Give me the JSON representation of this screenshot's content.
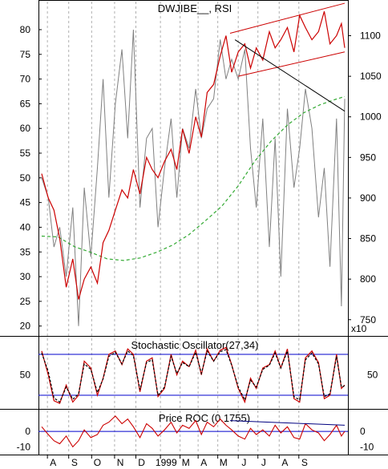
{
  "chart_data": [
    {
      "type": "line",
      "title": "DWJIBE__, RSI",
      "left_axis": {
        "ticks": [
          20,
          25,
          30,
          35,
          40,
          45,
          50,
          55,
          60,
          65,
          70,
          75,
          80
        ],
        "range": [
          18,
          86
        ]
      },
      "right_axis": {
        "ticks": [
          800,
          850,
          900,
          950,
          1000,
          1050,
          1100
        ],
        "minor": 750,
        "range": [
          730,
          1144
        ],
        "multiplier_label": "x10"
      },
      "series": [
        {
          "name": "",
          "role": "rsi",
          "color": "#808080",
          "axis": "left",
          "x": [
            0,
            8,
            15,
            22,
            30,
            38,
            45,
            52,
            60,
            68,
            75,
            82,
            90,
            98,
            105,
            112,
            120,
            128,
            135,
            142,
            150,
            158,
            165,
            172,
            180,
            188,
            195,
            202,
            210,
            218,
            225,
            232,
            240,
            248,
            255,
            262,
            270,
            278,
            285,
            292,
            300,
            308,
            315,
            322,
            330,
            338,
            345,
            352,
            360,
            366,
            370
          ],
          "values": [
            50,
            46,
            36,
            40,
            30,
            44,
            20,
            48,
            34,
            52,
            70,
            46,
            65,
            76,
            58,
            80,
            44,
            58,
            60,
            40,
            52,
            62,
            46,
            60,
            56,
            68,
            58,
            64,
            66,
            78,
            70,
            74,
            70,
            76,
            56,
            44,
            62,
            36,
            58,
            30,
            64,
            48,
            56,
            68,
            60,
            42,
            52,
            32,
            62,
            24,
            66
          ]
        },
        {
          "name": "",
          "role": "price",
          "color": "#cc0000",
          "axis": "right",
          "x": [
            0,
            8,
            15,
            22,
            30,
            38,
            45,
            52,
            60,
            68,
            75,
            82,
            90,
            98,
            105,
            112,
            120,
            128,
            135,
            142,
            150,
            158,
            165,
            172,
            180,
            188,
            195,
            202,
            210,
            218,
            225,
            232,
            240,
            248,
            255,
            262,
            270,
            278,
            285,
            292,
            300,
            308,
            315,
            322,
            330,
            338,
            345,
            352,
            360,
            366,
            370
          ],
          "values": [
            930,
            900,
            885,
            850,
            790,
            825,
            775,
            800,
            815,
            795,
            845,
            860,
            885,
            910,
            900,
            935,
            905,
            950,
            935,
            925,
            945,
            960,
            935,
            985,
            955,
            1000,
            975,
            1030,
            1040,
            1075,
            1100,
            1055,
            1080,
            1090,
            1060,
            1085,
            1070,
            1105,
            1085,
            1095,
            1110,
            1080,
            1125,
            1110,
            1095,
            1105,
            1130,
            1090,
            1100,
            1115,
            1085
          ]
        },
        {
          "name": "",
          "role": "moving-average",
          "color": "#33aa33",
          "axis": "right",
          "x": [
            0,
            20,
            40,
            60,
            80,
            100,
            120,
            140,
            160,
            180,
            200,
            220,
            240,
            260,
            280,
            300,
            320,
            340,
            360,
            370
          ],
          "values": [
            853,
            852,
            840,
            833,
            825,
            823,
            826,
            833,
            842,
            855,
            872,
            890,
            915,
            945,
            970,
            990,
            1005,
            1015,
            1022,
            1025
          ]
        }
      ],
      "trendlines": [
        {
          "name": "upper-channel",
          "axis": "right",
          "from": [
            230,
            1103
          ],
          "to": [
            370,
            1140
          ],
          "color": "#cc0000"
        },
        {
          "name": "lower-channel",
          "axis": "right",
          "from": [
            240,
            1050
          ],
          "to": [
            370,
            1080
          ],
          "color": "#cc0000"
        },
        {
          "name": "downtrend",
          "axis": "right",
          "from": [
            236,
            1095
          ],
          "to": [
            370,
            1007
          ],
          "color": "#000000"
        }
      ],
      "grid": "vertical-dashed"
    },
    {
      "type": "line",
      "title": "Stochastic Oscillator(27,34)",
      "left_axis": {
        "ticks": [
          50
        ],
        "range": [
          0,
          100
        ]
      },
      "right_axis": {
        "ticks": [
          50
        ],
        "range": [
          0,
          100
        ]
      },
      "reference_lines": [
        80,
        20
      ],
      "series": [
        {
          "name": "",
          "role": "%K",
          "color": "#cc0000",
          "style": "solid",
          "x": [
            0,
            8,
            15,
            22,
            30,
            38,
            45,
            52,
            60,
            68,
            75,
            82,
            90,
            98,
            105,
            112,
            120,
            128,
            135,
            142,
            150,
            158,
            165,
            172,
            180,
            188,
            195,
            202,
            210,
            218,
            225,
            232,
            240,
            248,
            255,
            262,
            270,
            278,
            285,
            292,
            300,
            308,
            315,
            322,
            330,
            338,
            345,
            352,
            360,
            366,
            370
          ],
          "values": [
            85,
            50,
            12,
            8,
            35,
            10,
            20,
            70,
            60,
            20,
            45,
            80,
            85,
            65,
            88,
            80,
            25,
            70,
            75,
            18,
            30,
            80,
            50,
            70,
            62,
            86,
            50,
            88,
            70,
            86,
            90,
            65,
            30,
            10,
            45,
            30,
            60,
            65,
            85,
            60,
            88,
            15,
            10,
            75,
            85,
            68,
            15,
            20,
            80,
            30,
            35
          ]
        },
        {
          "name": "",
          "role": "%D",
          "color": "#000000",
          "style": "dashed",
          "x": [
            0,
            8,
            15,
            22,
            30,
            38,
            45,
            52,
            60,
            68,
            75,
            82,
            90,
            98,
            105,
            112,
            120,
            128,
            135,
            142,
            150,
            158,
            165,
            172,
            180,
            188,
            195,
            202,
            210,
            218,
            225,
            232,
            240,
            248,
            255,
            262,
            270,
            278,
            285,
            292,
            300,
            308,
            315,
            322,
            330,
            338,
            345,
            352,
            360,
            366,
            370
          ],
          "values": [
            82,
            55,
            16,
            10,
            32,
            14,
            22,
            66,
            58,
            24,
            44,
            77,
            83,
            66,
            85,
            78,
            28,
            68,
            72,
            20,
            32,
            77,
            52,
            68,
            62,
            83,
            52,
            85,
            70,
            84,
            87,
            64,
            32,
            13,
            42,
            32,
            58,
            64,
            82,
            60,
            85,
            18,
            13,
            72,
            82,
            66,
            18,
            22,
            77,
            32,
            34
          ]
        }
      ]
    },
    {
      "type": "line",
      "title": "Price ROC (0.1755)",
      "left_axis": {
        "ticks": [
          0,
          -10
        ],
        "range": [
          -15,
          12
        ]
      },
      "right_axis": {
        "ticks": [
          0,
          -10
        ],
        "range": [
          -15,
          12
        ]
      },
      "reference_lines": [
        0
      ],
      "series": [
        {
          "name": "",
          "role": "roc",
          "color": "#cc0000",
          "x": [
            0,
            8,
            15,
            22,
            30,
            38,
            45,
            52,
            60,
            68,
            75,
            82,
            90,
            98,
            105,
            112,
            120,
            128,
            135,
            142,
            150,
            158,
            165,
            172,
            180,
            188,
            195,
            202,
            210,
            218,
            225,
            232,
            240,
            248,
            255,
            262,
            270,
            278,
            285,
            292,
            300,
            308,
            315,
            322,
            330,
            338,
            345,
            352,
            360,
            366,
            370
          ],
          "values": [
            3,
            -2,
            -6,
            -8,
            -3,
            -10,
            -6,
            1,
            -4,
            -2,
            4,
            6,
            10,
            5,
            8,
            3,
            -4,
            5,
            2,
            -3,
            1,
            6,
            -1,
            4,
            2,
            7,
            -2,
            6,
            3,
            8,
            4,
            1,
            -3,
            -5,
            2,
            -2,
            1,
            -3,
            4,
            -1,
            3,
            -4,
            -5,
            5,
            1,
            -1,
            -6,
            -2,
            4,
            -3,
            0
          ]
        }
      ],
      "trendlines": [
        {
          "name": "roc-trendline",
          "from": [
            230,
            7
          ],
          "to": [
            370,
            4
          ],
          "color": "#000080"
        }
      ]
    }
  ],
  "x_axis": {
    "labels": [
      "A",
      "S",
      "O",
      "N",
      "D",
      "1999",
      "M",
      "A",
      "M",
      "J",
      "J",
      "A",
      "S"
    ],
    "label_days": [
      14,
      40,
      68,
      96,
      122,
      152,
      176,
      198,
      222,
      247,
      271,
      297,
      321
    ]
  }
}
